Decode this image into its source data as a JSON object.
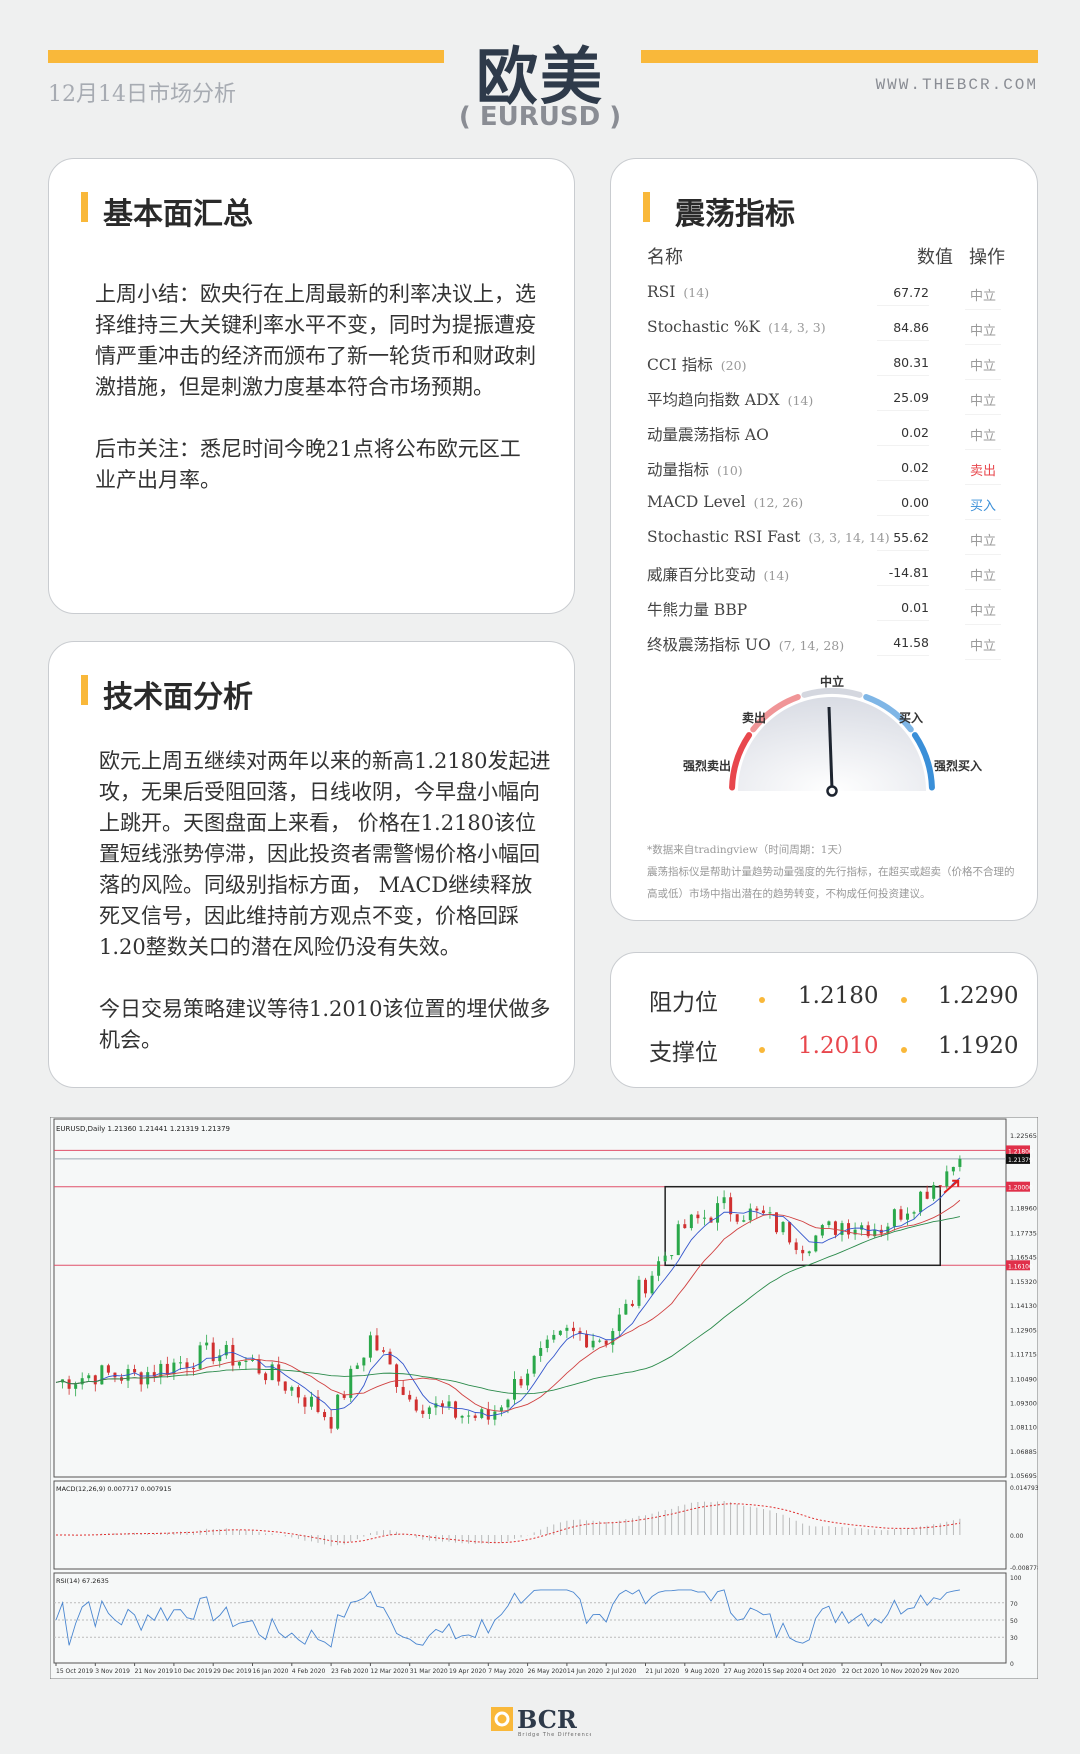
{
  "header": {
    "title": "欧美",
    "pair": "( EURUSD )",
    "date": "12月14日市场分析",
    "website": "WWW.THEBCR.COM"
  },
  "colors": {
    "accent": "#f9b83a",
    "sell": "#e8474d",
    "buy": "#3a8fd8"
  },
  "fundamentals": {
    "title": "基本面汇总",
    "paragraphs": [
      "上周小结：欧央行在上周最新的利率决议上，选择维持三大关键利率水平不变，同时为提振遭疫情严重冲击的经济而颁布了新一轮货币和财政刺激措施，但是刺激力度基本符合市场预期。",
      "后市关注：悉尼时间今晚21点将公布欧元区工业产出月率。"
    ]
  },
  "technical": {
    "title": "技术面分析",
    "paragraphs": [
      "欧元上周五继续对两年以来的新高1.2180发起进攻，无果后受阻回落，日线收阴，今早盘小幅向上跳开。天图盘面上来看， 价格在1.2180该位置短线涨势停滞，因此投资者需警惕价格小幅回落的风险。同级别指标方面， MACD继续释放死叉信号，因此维持前方观点不变，价格回踩1.20整数关口的潜在风险仍没有失效。",
      "今日交易策略建议等待1.2010该位置的埋伏做多机会。"
    ]
  },
  "oscillators": {
    "title": "震荡指标",
    "headers": {
      "name": "名称",
      "value": "数值",
      "action": "操作"
    },
    "rows": [
      {
        "name": "RSI",
        "params": "(14)",
        "value": "67.72",
        "action": "中立"
      },
      {
        "name": "Stochastic %K",
        "params": "(14, 3, 3)",
        "value": "84.86",
        "action": "中立"
      },
      {
        "name": "CCI 指标",
        "params": "(20)",
        "value": "80.31",
        "action": "中立"
      },
      {
        "name": "平均趋向指数 ADX",
        "params": "(14)",
        "value": "25.09",
        "action": "中立"
      },
      {
        "name": "动量震荡指标 AO",
        "params": "",
        "value": "0.02",
        "action": "中立"
      },
      {
        "name": "动量指标",
        "params": "(10)",
        "value": "0.02",
        "action": "卖出"
      },
      {
        "name": "MACD Level",
        "params": "(12, 26)",
        "value": "0.00",
        "action": "买入"
      },
      {
        "name": "Stochastic RSI Fast",
        "params": "(3, 3, 14, 14)",
        "value": "55.62",
        "action": "中立"
      },
      {
        "name": "威廉百分比变动",
        "params": "(14)",
        "value": "-14.81",
        "action": "中立"
      },
      {
        "name": "牛熊力量 BBP",
        "params": "",
        "value": "0.01",
        "action": "中立"
      },
      {
        "name": "终极震荡指标 UO",
        "params": "(7, 14, 28)",
        "value": "41.58",
        "action": "中立"
      }
    ],
    "gauge": {
      "labels": {
        "strong_sell": "强烈卖出",
        "sell": "卖出",
        "neutral": "中立",
        "buy": "买入",
        "strong_buy": "强烈买入"
      },
      "reading": "中立"
    },
    "notes": [
      "*数据来自tradingview（时间周期：1天）",
      "震荡指标仪是帮助计量趋势动量强度的先行指标，在超买或超卖（价格不合理的高或低）市场中指出潜在的趋势转变，不构成任何投资建议。"
    ]
  },
  "levels": {
    "resistance_label": "阻力位",
    "support_label": "支撑位",
    "resistance": [
      "1.2180",
      "1.2290"
    ],
    "support": [
      "1.2010",
      "1.1920"
    ]
  },
  "chart_data": {
    "type": "candlestick",
    "symbol_line": "EURUSD,Daily  1.21360 1.21441 1.21319 1.21379",
    "ylim": [
      1.05695,
      1.22565
    ],
    "y_ticks": [
      "1.22565",
      "1.18960",
      "1.17735",
      "1.16545",
      "1.15320",
      "1.14130",
      "1.12905",
      "1.11715",
      "1.10490",
      "1.09300",
      "1.08110",
      "1.06885",
      "1.05695"
    ],
    "x_ticks": [
      "15 Oct 2019",
      "3 Nov 2019",
      "21 Nov 2019",
      "10 Dec 2019",
      "29 Dec 2019",
      "16 Jan 2020",
      "4 Feb 2020",
      "23 Feb 2020",
      "12 Mar 2020",
      "31 Mar 2020",
      "19 Apr 2020",
      "7 May 2020",
      "26 May 2020",
      "14 Jun 2020",
      "2 Jul 2020",
      "21 Jul 2020",
      "9 Aug 2020",
      "27 Aug 2020",
      "15 Sep 2020",
      "4 Oct 2020",
      "22 Oct 2020",
      "10 Nov 2020",
      "29 Nov 2020"
    ],
    "closes_at_ticks": [
      1.103,
      1.107,
      1.106,
      1.112,
      1.118,
      1.112,
      1.1,
      1.085,
      1.125,
      1.095,
      1.088,
      1.085,
      1.11,
      1.127,
      1.125,
      1.153,
      1.18,
      1.19,
      1.185,
      1.172,
      1.182,
      1.18,
      1.196
    ],
    "last_close": 1.21379,
    "hlines": [
      {
        "value": 1.218,
        "label": "1.21800"
      },
      {
        "value": 1.2,
        "label": "1.20000"
      },
      {
        "value": 1.161,
        "label": "1.16100"
      }
    ],
    "current_label": "1.21379",
    "macd": {
      "title": "MACD(12,26,9) 0.007717 0.007915",
      "ticks": [
        "0.014793",
        "0.00",
        "-0.008778"
      ]
    },
    "rsi": {
      "title": "RSI(14) 67.2635",
      "ticks": [
        "100",
        "70",
        "50",
        "30",
        "0"
      ]
    }
  },
  "footer": {
    "logo": "BCR",
    "tagline": "Bridge The Difference"
  }
}
